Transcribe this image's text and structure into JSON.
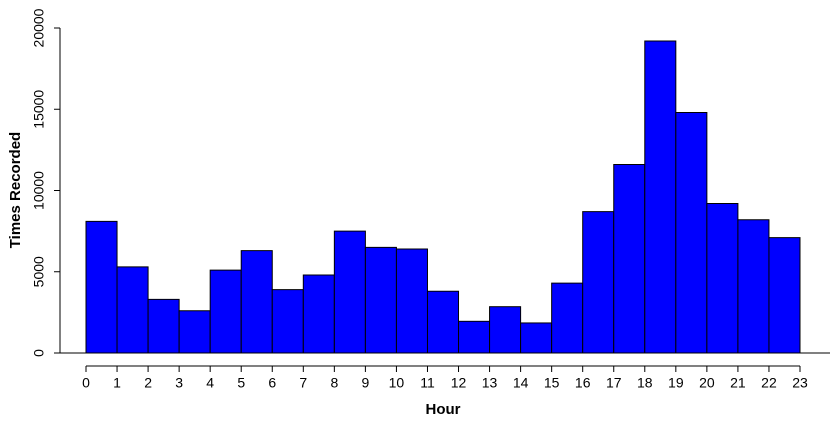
{
  "chart_data": {
    "type": "histogram",
    "xlabel": "Hour",
    "ylabel": "Times Recorded",
    "bins": [
      0,
      1,
      2,
      3,
      4,
      5,
      6,
      7,
      8,
      9,
      10,
      11,
      12,
      13,
      14,
      15,
      16,
      17,
      18,
      19,
      20,
      21,
      22,
      23
    ],
    "counts": [
      8100,
      5300,
      3300,
      2600,
      5100,
      6300,
      3900,
      4800,
      7500,
      6500,
      6400,
      3800,
      1950,
      2850,
      1850,
      4300,
      8700,
      11600,
      19200,
      14800,
      9200,
      8200,
      7100
    ],
    "color": "#0000ff",
    "xlim": [
      0,
      23
    ],
    "xticks": [
      0,
      1,
      2,
      3,
      4,
      5,
      6,
      7,
      8,
      9,
      10,
      11,
      12,
      13,
      14,
      15,
      16,
      17,
      18,
      19,
      20,
      21,
      22,
      23
    ],
    "ylim": [
      0,
      20000
    ],
    "yticks": [
      0,
      5000,
      10000,
      15000,
      20000
    ]
  }
}
